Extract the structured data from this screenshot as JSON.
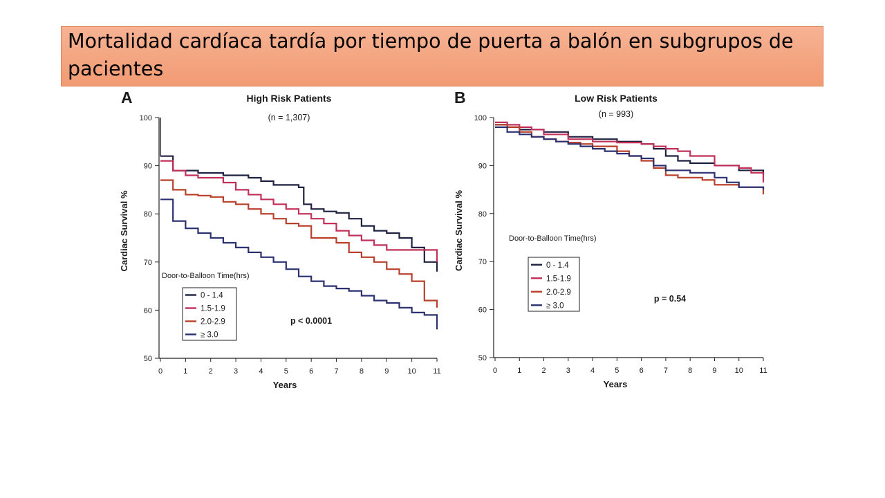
{
  "slide": {
    "title": "Mortalidad cardíaca tardía por tiempo de puerta a balón en subgrupos de pacientes"
  },
  "chart_data": [
    {
      "type": "line",
      "step": true,
      "panel_letter": "A",
      "title": "High Risk Patients",
      "subtitle": "(n = 1,307)",
      "xlabel": "Years",
      "ylabel": "Cardiac Survival %",
      "xlim": [
        0,
        11
      ],
      "ylim": [
        50,
        100
      ],
      "xticks": [
        0,
        1,
        2,
        3,
        4,
        5,
        6,
        7,
        8,
        9,
        10,
        11
      ],
      "yticks": [
        50,
        60,
        70,
        80,
        90,
        100
      ],
      "legend_title": "Door-to-Balloon Time(hrs)",
      "legend_position": "bottom-left",
      "annotation": "p < 0.0001",
      "series": [
        {
          "name": "0 - 1.4",
          "color": "#1f2140",
          "x": [
            0,
            0.5,
            1.5,
            2.5,
            3.5,
            4.0,
            4.5,
            5.5,
            5.7,
            6.0,
            6.5,
            7.0,
            7.5,
            8.0,
            8.5,
            9.0,
            9.5,
            10.0,
            10.5,
            11
          ],
          "y": [
            92,
            89,
            88.5,
            88,
            87.5,
            86.8,
            86,
            85.5,
            82,
            81,
            80.5,
            80.2,
            79,
            77.5,
            76.5,
            76,
            75,
            73,
            70,
            68
          ]
        },
        {
          "name": "1.5-1.9",
          "color": "#c2305a",
          "x": [
            0,
            0.5,
            1.0,
            1.5,
            2.5,
            3.0,
            3.5,
            4.0,
            4.5,
            5.0,
            5.5,
            6.0,
            6.5,
            7.0,
            7.5,
            8.0,
            8.5,
            9.0,
            10.0,
            11
          ],
          "y": [
            91,
            89,
            88,
            87.5,
            86.5,
            85,
            84,
            83,
            82,
            81,
            80,
            79,
            78,
            76.5,
            75.5,
            74.5,
            73.5,
            72.5,
            72.5,
            70
          ]
        },
        {
          "name": "2.0-2.9",
          "color": "#b8402a",
          "x": [
            0,
            0.5,
            1.0,
            1.5,
            2.0,
            2.5,
            3.0,
            3.5,
            4.0,
            4.5,
            5.0,
            5.5,
            6.0,
            7.0,
            7.5,
            8.0,
            8.5,
            9.0,
            9.5,
            10.0,
            10.5,
            11
          ],
          "y": [
            87,
            85,
            84,
            83.8,
            83.5,
            82.5,
            82,
            81,
            80,
            79,
            78,
            77.5,
            75,
            74,
            72,
            71,
            70,
            68.5,
            67.5,
            66,
            62,
            60.5
          ]
        },
        {
          "name": "≥ 3.0",
          "color": "#2b3170",
          "x": [
            0,
            0.5,
            1.0,
            1.5,
            2.0,
            2.5,
            3.0,
            3.5,
            4.0,
            4.5,
            5.0,
            5.5,
            6.0,
            6.5,
            7.0,
            7.5,
            8.0,
            8.5,
            9.0,
            9.5,
            10.0,
            10.5,
            11
          ],
          "y": [
            83,
            78.5,
            77,
            76,
            75,
            74,
            73,
            72,
            71,
            70,
            68.5,
            67,
            66,
            65,
            64.5,
            64,
            63,
            62,
            61.5,
            60.5,
            59.5,
            59,
            56
          ]
        }
      ]
    },
    {
      "type": "line",
      "step": true,
      "panel_letter": "B",
      "title": "Low Risk Patients",
      "subtitle": "(n = 993)",
      "xlabel": "Years",
      "ylabel": "Cardiac Survival %",
      "xlim": [
        0,
        11
      ],
      "ylim": [
        50,
        100
      ],
      "xticks": [
        0,
        1,
        2,
        3,
        4,
        5,
        6,
        7,
        8,
        9,
        10,
        11
      ],
      "yticks": [
        50,
        60,
        70,
        80,
        90,
        100
      ],
      "legend_title": "Door-to-Balloon Time(hrs)",
      "legend_position": "middle-left",
      "annotation": "p = 0.54",
      "series": [
        {
          "name": "0 - 1.4",
          "color": "#1f2140",
          "x": [
            0,
            0.5,
            1.0,
            1.5,
            2.0,
            3.0,
            4.0,
            5.0,
            6.0,
            6.5,
            7.0,
            7.5,
            8.0,
            9.0,
            10.0,
            11
          ],
          "y": [
            98.5,
            98,
            97.5,
            97.5,
            97,
            96,
            95.5,
            95,
            94.5,
            93.5,
            92,
            91,
            90.5,
            90,
            89,
            88
          ]
        },
        {
          "name": "1.5-1.9",
          "color": "#c2305a",
          "x": [
            0,
            0.5,
            1.0,
            1.5,
            2.0,
            3.0,
            4.0,
            5.0,
            6.0,
            6.5,
            7.0,
            7.5,
            8.0,
            8.5,
            9.0,
            10.0,
            10.5,
            11
          ],
          "y": [
            99,
            98.5,
            98,
            97.5,
            96.5,
            95.5,
            95,
            94.8,
            94.5,
            94,
            93.5,
            93,
            92,
            92,
            90,
            89.5,
            88.5,
            86.5
          ]
        },
        {
          "name": "2.0-2.9",
          "color": "#b8402a",
          "x": [
            0,
            0.5,
            1.0,
            1.5,
            2.0,
            2.5,
            3.0,
            3.5,
            4.0,
            5.0,
            5.5,
            6.0,
            6.5,
            7.0,
            7.5,
            8.0,
            8.5,
            9.0,
            10.0,
            11
          ],
          "y": [
            98.5,
            98,
            97,
            96,
            95.5,
            95,
            94.8,
            94.5,
            94,
            93,
            92,
            91,
            89.5,
            88,
            87.5,
            87.5,
            87,
            86,
            85.5,
            84
          ]
        },
        {
          "name": "≥ 3.0",
          "color": "#2b3170",
          "x": [
            0,
            0.5,
            1.0,
            1.5,
            2.0,
            2.5,
            3.0,
            3.5,
            4.0,
            4.5,
            5.0,
            5.5,
            6.0,
            6.5,
            7.0,
            8.0,
            9.0,
            9.5,
            10.0,
            11
          ],
          "y": [
            98,
            97,
            96.5,
            96,
            95.5,
            95,
            94.5,
            94,
            93.5,
            93,
            92.5,
            92,
            91.5,
            90,
            89,
            88.5,
            87.5,
            86.5,
            85.5,
            85
          ]
        }
      ]
    }
  ]
}
